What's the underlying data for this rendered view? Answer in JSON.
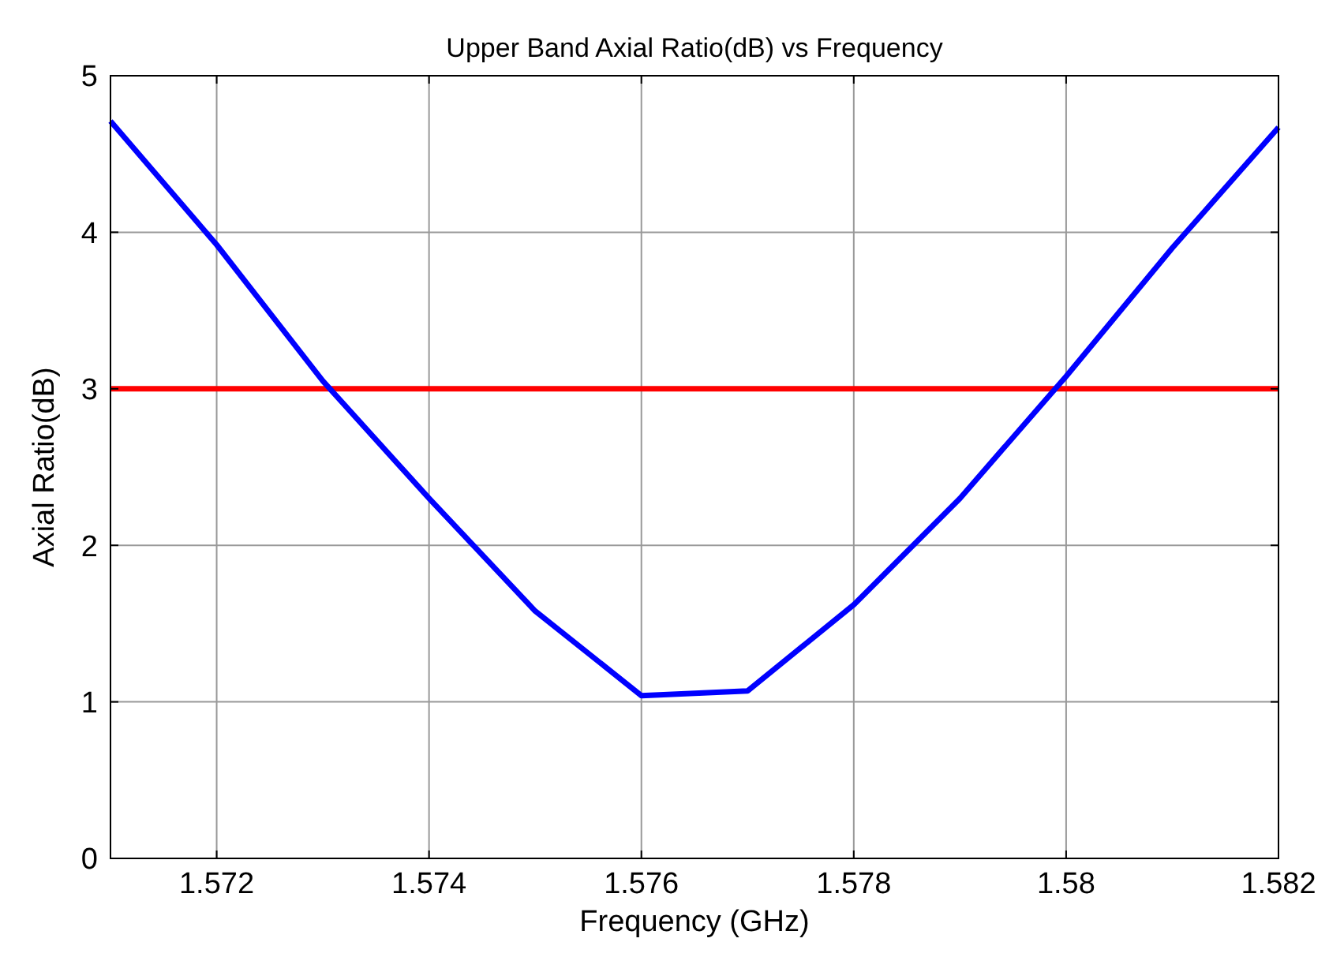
{
  "chart_data": {
    "type": "line",
    "title": "Upper Band Axial Ratio(dB) vs Frequency",
    "xlabel": "Frequency (GHz)",
    "ylabel": "Axial Ratio(dB)",
    "x": [
      1.571,
      1.572,
      1.573,
      1.574,
      1.575,
      1.576,
      1.577,
      1.578,
      1.579,
      1.58,
      1.581,
      1.582
    ],
    "series": [
      {
        "color": "#0000ff",
        "values": [
          4.71,
          3.92,
          3.05,
          2.3,
          1.58,
          1.04,
          1.07,
          1.62,
          2.3,
          3.08,
          3.9,
          4.67
        ]
      }
    ],
    "ref_lines": [
      {
        "axis": "y",
        "value": 3,
        "color": "#ff0000"
      }
    ],
    "xlim": [
      1.571,
      1.582
    ],
    "xticks": [
      1.572,
      1.574,
      1.576,
      1.578,
      1.58,
      1.582
    ],
    "ylim": [
      0,
      5
    ],
    "yticks": [
      0,
      1,
      2,
      3,
      4,
      5
    ],
    "grid": true,
    "marker": "none",
    "line_style": "solid"
  }
}
